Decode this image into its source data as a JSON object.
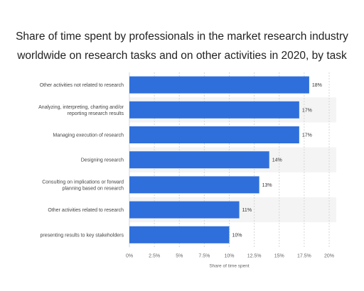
{
  "chart_data": {
    "type": "bar",
    "orientation": "horizontal",
    "title_lines": [
      "Share of time spent by professionals in the market research industry",
      "worldwide on research tasks and on other activities in 2020, by task"
    ],
    "categories": [
      [
        "Other activities not related to research"
      ],
      [
        "Analyzing, interpreting, charting and/or",
        "reporting research results"
      ],
      [
        "Managing execution of research"
      ],
      [
        "Designing research"
      ],
      [
        "Consulting on implications or forward",
        "planning based on research"
      ],
      [
        "Other activities related to research"
      ],
      [
        "presenting results to key stakeholders"
      ]
    ],
    "values": [
      18,
      17,
      17,
      14,
      13,
      11,
      10
    ],
    "value_labels": [
      "18%",
      "17%",
      "17%",
      "14%",
      "13%",
      "11%",
      "10%"
    ],
    "xlabel": "Share of time spent",
    "ylabel": "",
    "xlim": [
      0,
      20
    ],
    "xticks": [
      0,
      2.5,
      5,
      7.5,
      10,
      12.5,
      15,
      17.5,
      20
    ],
    "xtick_labels": [
      "0%",
      "2.5%",
      "5%",
      "7.5%",
      "10%",
      "12.5%",
      "15%",
      "17.5%",
      "20%"
    ],
    "grid": "vertical dashed",
    "legend": "none",
    "bar_color": "#2f6fdc",
    "band_color": "#f4f4f4"
  }
}
